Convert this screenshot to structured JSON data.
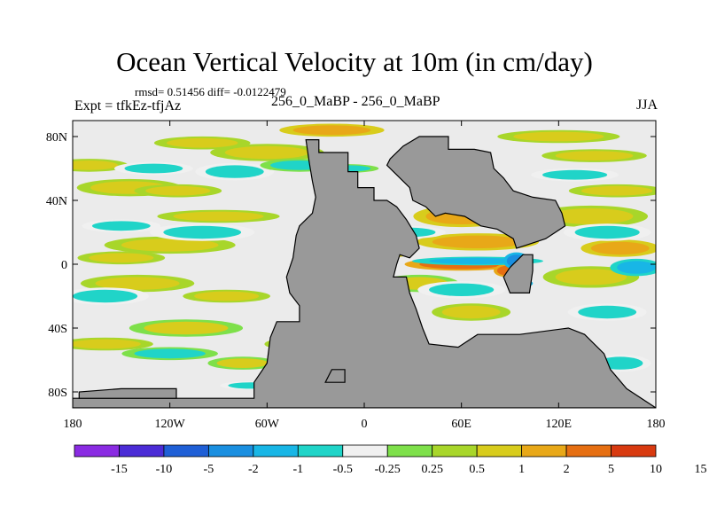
{
  "chart_data": {
    "type": "heatmap",
    "title": "Ocean Vertical Velocity at 10m (in cm/day)",
    "stats": "rmsd= 0.51456 diff= -0.0122479",
    "left_label": "Expt = tfkEz-tfjAz",
    "center_label": "256_0_MaBP - 256_0_MaBP",
    "right_label": "JJA",
    "xlim": [
      -180,
      180
    ],
    "ylim": [
      -90,
      90
    ],
    "x_ticks": [
      {
        "value": -180,
        "label": "180"
      },
      {
        "value": -120,
        "label": "120W"
      },
      {
        "value": -60,
        "label": "60W"
      },
      {
        "value": 0,
        "label": "0"
      },
      {
        "value": 60,
        "label": "60E"
      },
      {
        "value": 120,
        "label": "120E"
      },
      {
        "value": 180,
        "label": "180"
      }
    ],
    "y_ticks": [
      {
        "value": 80,
        "label": "80N"
      },
      {
        "value": 40,
        "label": "40N"
      },
      {
        "value": 0,
        "label": "0"
      },
      {
        "value": -40,
        "label": "40S"
      },
      {
        "value": -80,
        "label": "80S"
      }
    ],
    "colorbar": {
      "colors": [
        "#8a2be2",
        "#4b2cd6",
        "#1f5fd6",
        "#1a8fe0",
        "#18b6e6",
        "#20d4c8",
        "#f0f0f0",
        "#7ee04a",
        "#a8d62a",
        "#d8cc1c",
        "#e8a818",
        "#e66f12",
        "#d83a10"
      ],
      "levels": [
        "-15",
        "-10",
        "-5",
        "-2",
        "-1",
        "-0.5",
        "-0.25",
        "0.25",
        "0.5",
        "1",
        "2",
        "5",
        "10",
        "15"
      ]
    },
    "land_color": "#999999",
    "ocean_background_color": "#ebebeb",
    "land": [
      [
        [
          -36,
          78
        ],
        [
          -28,
          78
        ],
        [
          -28,
          70
        ],
        [
          -10,
          70
        ],
        [
          -10,
          58
        ],
        [
          -4,
          58
        ],
        [
          -4,
          48
        ],
        [
          6,
          48
        ],
        [
          6,
          40
        ],
        [
          14,
          40
        ],
        [
          20,
          36
        ],
        [
          26,
          28
        ],
        [
          32,
          18
        ],
        [
          34,
          10
        ],
        [
          28,
          4
        ],
        [
          22,
          6
        ],
        [
          20,
          0
        ],
        [
          18,
          -8
        ],
        [
          26,
          -8
        ],
        [
          28,
          -18
        ],
        [
          32,
          -28
        ],
        [
          36,
          -40
        ],
        [
          40,
          -50
        ],
        [
          58,
          -52
        ],
        [
          70,
          -44
        ],
        [
          96,
          -44
        ],
        [
          126,
          -40
        ],
        [
          136,
          -44
        ],
        [
          148,
          -56
        ],
        [
          152,
          -66
        ],
        [
          162,
          -78
        ],
        [
          180,
          -90
        ],
        [
          -180,
          -90
        ],
        [
          -180,
          -84
        ],
        [
          -68,
          -84
        ],
        [
          -68,
          -74
        ],
        [
          -60,
          -62
        ],
        [
          -58,
          -46
        ],
        [
          -54,
          -36
        ],
        [
          -40,
          -36
        ],
        [
          -40,
          -26
        ],
        [
          -46,
          -18
        ],
        [
          -48,
          -8
        ],
        [
          -44,
          4
        ],
        [
          -42,
          18
        ],
        [
          -40,
          24
        ],
        [
          -32,
          32
        ],
        [
          -30,
          42
        ],
        [
          -32,
          52
        ],
        [
          -34,
          64
        ]
      ],
      [
        [
          16,
          66
        ],
        [
          24,
          74
        ],
        [
          34,
          80
        ],
        [
          52,
          80
        ],
        [
          52,
          72
        ],
        [
          68,
          72
        ],
        [
          78,
          70
        ],
        [
          80,
          60
        ],
        [
          86,
          54
        ],
        [
          92,
          46
        ],
        [
          104,
          42
        ],
        [
          118,
          40
        ],
        [
          122,
          32
        ],
        [
          124,
          24
        ],
        [
          112,
          16
        ],
        [
          100,
          12
        ],
        [
          94,
          10
        ],
        [
          92,
          16
        ],
        [
          82,
          22
        ],
        [
          72,
          24
        ],
        [
          62,
          30
        ],
        [
          50,
          32
        ],
        [
          44,
          30
        ],
        [
          38,
          36
        ],
        [
          30,
          40
        ],
        [
          28,
          48
        ],
        [
          20,
          56
        ],
        [
          14,
          62
        ]
      ],
      [
        [
          90,
          -2
        ],
        [
          98,
          6
        ],
        [
          104,
          6
        ],
        [
          104,
          -4
        ],
        [
          102,
          -18
        ],
        [
          90,
          -18
        ],
        [
          86,
          -8
        ]
      ],
      [
        [
          -20,
          -66
        ],
        [
          -12,
          -66
        ],
        [
          -12,
          -74
        ],
        [
          -24,
          -74
        ]
      ],
      [
        [
          -176,
          -84
        ],
        [
          -116,
          -84
        ],
        [
          -116,
          -78
        ],
        [
          -150,
          -78
        ],
        [
          -176,
          -80
        ]
      ]
    ],
    "positive_patches": [
      [
        -170,
        62,
        18,
        3,
        0.75
      ],
      [
        -145,
        48,
        24,
        4,
        0.6
      ],
      [
        -115,
        46,
        20,
        3,
        0.7
      ],
      [
        -90,
        30,
        28,
        3,
        0.9
      ],
      [
        -120,
        12,
        30,
        4,
        0.6
      ],
      [
        -150,
        4,
        20,
        3,
        0.8
      ],
      [
        -140,
        -12,
        26,
        4,
        0.6
      ],
      [
        -85,
        -20,
        20,
        3,
        0.75
      ],
      [
        -110,
        -40,
        26,
        4,
        0.55
      ],
      [
        -160,
        -50,
        22,
        3,
        0.7
      ],
      [
        -75,
        -62,
        16,
        3,
        0.55
      ],
      [
        -60,
        70,
        26,
        4,
        0.7
      ],
      [
        -20,
        84,
        24,
        3,
        1.2
      ],
      [
        -100,
        76,
        22,
        3,
        0.65
      ],
      [
        60,
        30,
        22,
        5,
        1.2
      ],
      [
        70,
        14,
        28,
        4,
        1.6
      ],
      [
        60,
        0,
        26,
        3,
        2.4
      ],
      [
        88,
        -4,
        6,
        3,
        3.0
      ],
      [
        66,
        -30,
        18,
        4,
        0.75
      ],
      [
        140,
        30,
        26,
        5,
        0.9
      ],
      [
        158,
        10,
        18,
        4,
        1.2
      ],
      [
        140,
        -8,
        22,
        5,
        0.75
      ],
      [
        156,
        46,
        22,
        3,
        0.6
      ],
      [
        120,
        80,
        28,
        3,
        0.6
      ],
      [
        142,
        68,
        24,
        3,
        0.8
      ],
      [
        0,
        -54,
        22,
        3,
        0.55
      ],
      [
        -40,
        -50,
        16,
        3,
        0.6
      ],
      [
        34,
        -12,
        18,
        4,
        0.55
      ],
      [
        12,
        8,
        14,
        3,
        1.2
      ]
    ],
    "negative_patches": [
      [
        -130,
        60,
        18,
        3,
        -0.75
      ],
      [
        -100,
        20,
        24,
        4,
        -0.6
      ],
      [
        -160,
        -20,
        20,
        4,
        -0.7
      ],
      [
        -120,
        -56,
        22,
        3,
        -0.55
      ],
      [
        -80,
        58,
        18,
        4,
        -0.8
      ],
      [
        -150,
        24,
        18,
        3,
        -0.6
      ],
      [
        -40,
        62,
        18,
        3,
        -0.55
      ],
      [
        50,
        50,
        20,
        3,
        -0.75
      ],
      [
        70,
        2,
        30,
        2,
        -1.6
      ],
      [
        94,
        2,
        6,
        4,
        -3.0
      ],
      [
        96,
        -12,
        6,
        2,
        -2.4
      ],
      [
        60,
        -16,
        20,
        4,
        -0.75
      ],
      [
        150,
        20,
        20,
        4,
        -0.8
      ],
      [
        168,
        -2,
        12,
        4,
        -1.2
      ],
      [
        150,
        -30,
        18,
        4,
        -0.6
      ],
      [
        -10,
        60,
        14,
        2,
        -0.55
      ],
      [
        130,
        56,
        20,
        3,
        -0.8
      ],
      [
        158,
        -62,
        14,
        4,
        -0.75
      ],
      [
        -70,
        -76,
        14,
        2,
        -0.6
      ],
      [
        -30,
        -70,
        10,
        2,
        -0.7
      ],
      [
        26,
        20,
        18,
        3,
        -0.6
      ]
    ]
  }
}
